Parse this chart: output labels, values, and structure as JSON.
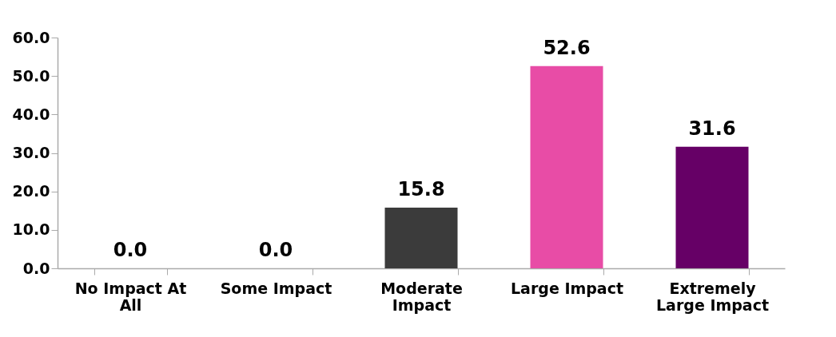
{
  "chart_data": {
    "type": "bar",
    "categories": [
      "No Impact At All",
      "Some Impact",
      "Moderate Impact",
      "Large Impact",
      "Extremely Large Impact"
    ],
    "values": [
      0.0,
      0.0,
      15.8,
      52.6,
      31.6
    ],
    "colors": [
      "#3b3b3b",
      "#3b3b3b",
      "#3b3b3b",
      "#e84ca6",
      "#660066"
    ],
    "ylim": [
      0,
      60
    ],
    "yticks": [
      {
        "value": 0,
        "label": "0.0"
      },
      {
        "value": 10,
        "label": "10.0"
      },
      {
        "value": 20,
        "label": "20.0"
      },
      {
        "value": 30,
        "label": "30.0"
      },
      {
        "value": 40,
        "label": "40.0"
      },
      {
        "value": 50,
        "label": "50.0"
      },
      {
        "value": 60,
        "label": "60.0"
      }
    ],
    "value_labels": [
      "0.0",
      "0.0",
      "15.8",
      "52.6",
      "31.6"
    ],
    "grid": false
  }
}
